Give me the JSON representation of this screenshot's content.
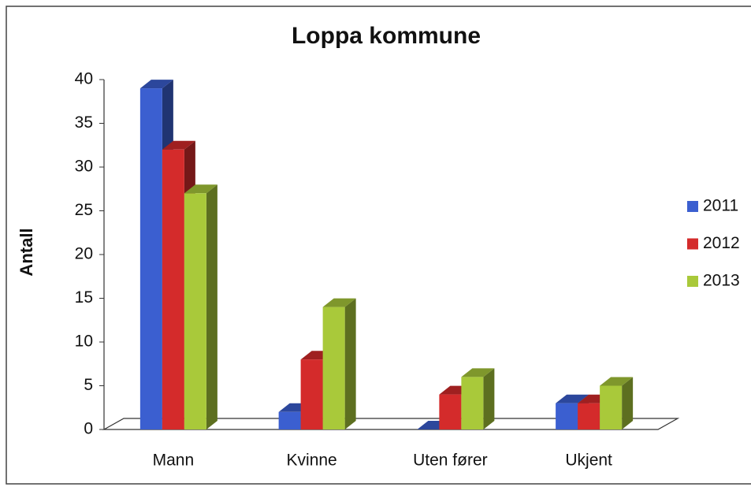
{
  "chart_data": {
    "type": "bar3d",
    "title": "Loppa kommune",
    "y_label": "Antall",
    "categories": [
      "Mann",
      "Kvinne",
      "Uten fører",
      "Ukjent"
    ],
    "series": [
      {
        "name": "2011",
        "color": "#3b5fd0",
        "values": [
          39,
          2,
          0,
          3
        ]
      },
      {
        "name": "2012",
        "color": "#d42b2b",
        "values": [
          32,
          8,
          4,
          3
        ]
      },
      {
        "name": "2013",
        "color": "#a9c93a",
        "values": [
          27,
          14,
          6,
          5
        ]
      }
    ],
    "ylim": [
      0,
      40
    ],
    "yticks": [
      0,
      5,
      10,
      15,
      20,
      25,
      30,
      35,
      40
    ],
    "legend": "right"
  }
}
